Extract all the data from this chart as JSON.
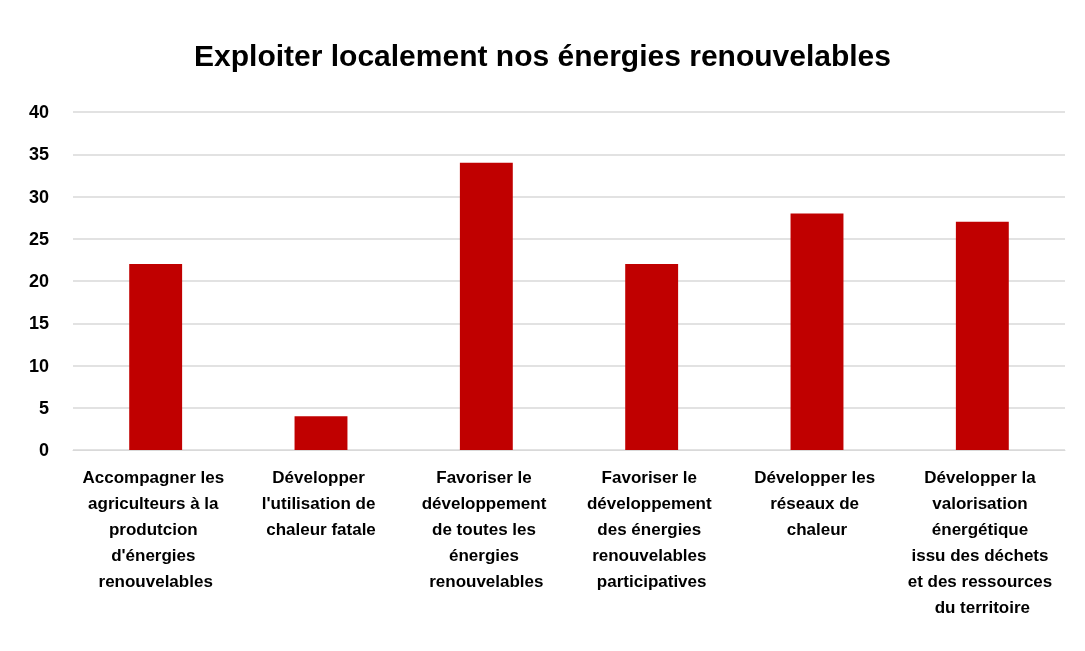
{
  "chart_data": {
    "type": "bar",
    "title": "Exploiter localement nos énergies renouvelables",
    "categories": [
      "Accompagner les agriculteurs à la produtcion d'énergies renouvelables",
      "Développer l'utilisation de chaleur fatale",
      "Favoriser le développement de toutes les énergies renouvelables",
      "Favoriser le développement des énergies renouvelables participatives",
      "Développer les réseaux de chaleur",
      "Développer la valorisation énergétique issu des déchets et des ressources du territoire"
    ],
    "values": [
      22,
      4,
      34,
      22,
      28,
      27
    ],
    "color": "#c00000",
    "ylim": [
      0,
      40
    ],
    "yticks": [
      0,
      5,
      10,
      15,
      20,
      25,
      30,
      35,
      40
    ],
    "grid": "y"
  }
}
